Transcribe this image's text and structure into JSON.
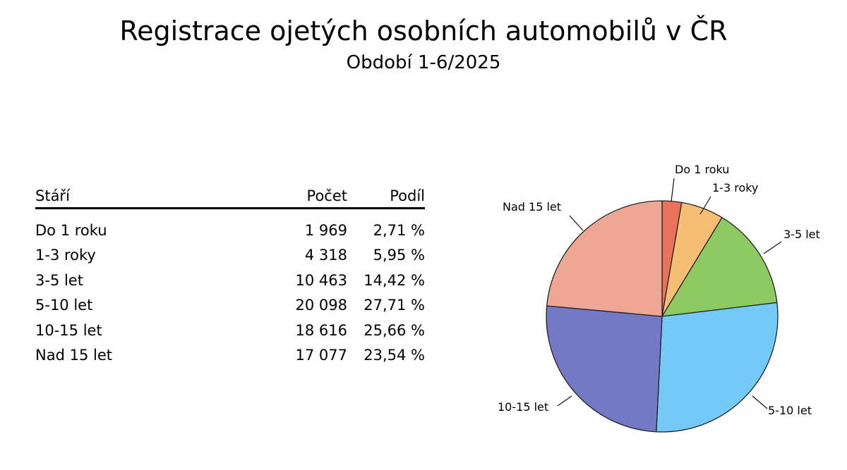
{
  "title": "Registrace ojetých osobních automobilů v ČR",
  "subtitle": "Období 1-6/2025",
  "table": {
    "headers": {
      "age": "Stáří",
      "count": "Počet",
      "share": "Podíl"
    },
    "rows": [
      {
        "age": "Do 1 roku",
        "count": "1 969",
        "share": "2,71 %"
      },
      {
        "age": "1-3 roky",
        "count": "4 318",
        "share": "5,95 %"
      },
      {
        "age": "3-5 let",
        "count": "10 463",
        "share": "14,42 %"
      },
      {
        "age": "5-10 let",
        "count": "20 098",
        "share": "27,71 %"
      },
      {
        "age": "10-15 let",
        "count": "18 616",
        "share": "25,66 %"
      },
      {
        "age": "Nad 15 let",
        "count": "17 077",
        "share": "23,54 %"
      }
    ]
  },
  "chart_data": {
    "type": "pie",
    "categories": [
      "Do 1 roku",
      "1-3 roky",
      "3-5 let",
      "5-10 let",
      "10-15 let",
      "Nad 15 let"
    ],
    "values": [
      1969,
      4318,
      10463,
      20098,
      18616,
      17077
    ],
    "shares": [
      2.71,
      5.95,
      14.42,
      27.71,
      25.66,
      23.54
    ],
    "colors": [
      "#E8735A",
      "#F5BE74",
      "#8DCA62",
      "#75C9F7",
      "#7479C6",
      "#EEA795"
    ],
    "start": "top",
    "direction": "clockwise"
  }
}
